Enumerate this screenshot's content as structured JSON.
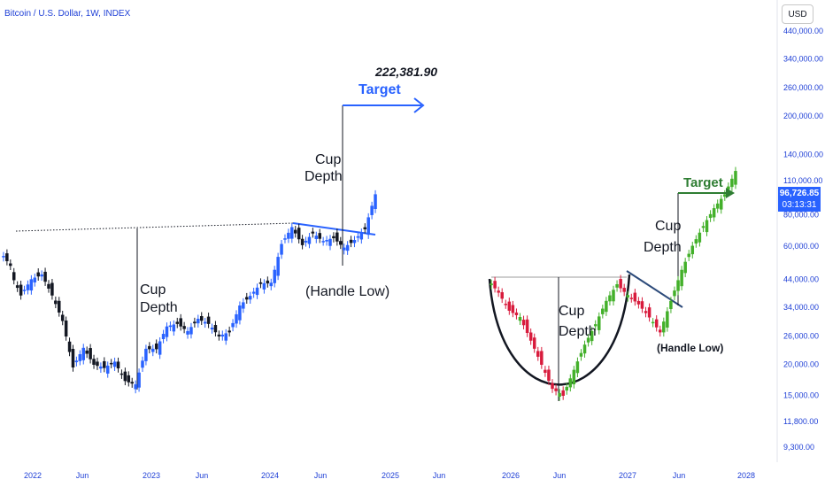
{
  "header": {
    "title": "Bitcoin / U.S. Dollar, 1W, INDEX",
    "currency_button": "USD"
  },
  "current_price": {
    "value": "96,726.85",
    "countdown": "03:13:31"
  },
  "colors": {
    "axis_text": "#1e3fd6",
    "candle_up_left": "#2962ff",
    "candle_down_left": "#131722",
    "candle_up_right": "#43b02a",
    "candle_down_right": "#d81b3c",
    "trendline": "#2962ff",
    "target_right": "#2e7d32",
    "handle_line_right": "#2c4a7a",
    "badge": "#2962ff"
  },
  "chart_data": {
    "type": "candlestick",
    "y_scale": "log",
    "y_axis_ticks": [
      "440,000.00",
      "340,000.00",
      "260,000.00",
      "200,000.00",
      "140,000.00",
      "110,000.00",
      "80,000.00",
      "60,000.00",
      "44,000.00",
      "34,000.00",
      "26,000.00",
      "20,000.00",
      "15,000.00",
      "11,800.00",
      "9,300.00"
    ],
    "x_axis_ticks": [
      "2022",
      "Jun",
      "2023",
      "Jun",
      "2024",
      "Jun",
      "2025",
      "Jun",
      "2026",
      "Jun",
      "2027",
      "Jun",
      "2028"
    ],
    "annotations_left": {
      "target_value": "222,381.90",
      "target_label": "Target",
      "cup_depth_label_1": "Cup",
      "cup_depth_label_2": "Depth",
      "handle_label": "(Handle Low)"
    },
    "annotations_right": {
      "target_label": "Target",
      "cup_depth_label_1": "Cup",
      "cup_depth_label_2": "Depth",
      "handle_label": "(Handle Low)"
    },
    "series_left": [
      [
        "2021-12",
        57000,
        50000
      ],
      [
        "2022-01",
        47000,
        38000
      ],
      [
        "2022-02",
        38000,
        44000
      ],
      [
        "2022-03",
        44000,
        46000
      ],
      [
        "2022-04",
        46000,
        38000
      ],
      [
        "2022-05",
        38000,
        30000
      ],
      [
        "2022-06",
        30000,
        19500
      ],
      [
        "2022-07",
        19500,
        23300
      ],
      [
        "2022-08",
        23300,
        20000
      ],
      [
        "2022-09",
        20000,
        19400
      ],
      [
        "2022-10",
        19400,
        20500
      ],
      [
        "2022-11",
        20500,
        17200
      ],
      [
        "2022-12",
        17200,
        16600
      ],
      [
        "2023-01",
        16600,
        23100
      ],
      [
        "2023-02",
        23100,
        23100
      ],
      [
        "2023-03",
        23100,
        28400
      ],
      [
        "2023-04",
        28400,
        29200
      ],
      [
        "2023-05",
        29200,
        27200
      ],
      [
        "2023-06",
        27200,
        30500
      ],
      [
        "2023-07",
        30500,
        29200
      ],
      [
        "2023-08",
        29200,
        26000
      ],
      [
        "2023-09",
        26000,
        27000
      ],
      [
        "2023-10",
        27000,
        34500
      ],
      [
        "2023-11",
        34500,
        37700
      ],
      [
        "2023-12",
        37700,
        42300
      ],
      [
        "2024-01",
        42300,
        42600
      ],
      [
        "2024-02",
        42600,
        61000
      ],
      [
        "2024-03",
        61000,
        71300
      ],
      [
        "2024-04",
        71300,
        60600
      ],
      [
        "2024-05",
        60600,
        67500
      ],
      [
        "2024-06",
        67500,
        62700
      ],
      [
        "2024-07",
        62700,
        64600
      ],
      [
        "2024-08",
        64600,
        59000
      ],
      [
        "2024-09",
        59000,
        63300
      ],
      [
        "2024-10",
        63300,
        70200
      ],
      [
        "2024-11",
        70200,
        96700
      ]
    ],
    "series_right": [
      [
        "2025-12",
        44000,
        39000
      ],
      [
        "2026-01",
        39000,
        33000
      ],
      [
        "2026-02",
        33000,
        31000
      ],
      [
        "2026-03",
        31000,
        25000
      ],
      [
        "2026-04",
        25000,
        20000
      ],
      [
        "2026-05",
        20000,
        16000
      ],
      [
        "2026-06",
        16000,
        15000
      ],
      [
        "2026-07",
        15000,
        19000
      ],
      [
        "2026-08",
        19000,
        24000
      ],
      [
        "2026-09",
        24000,
        29000
      ],
      [
        "2026-10",
        29000,
        36000
      ],
      [
        "2026-11",
        36000,
        42000
      ],
      [
        "2027-01",
        42000,
        38000
      ],
      [
        "2027-02",
        38000,
        35000
      ],
      [
        "2027-03",
        35000,
        31000
      ],
      [
        "2027-04",
        31000,
        27000
      ],
      [
        "2027-05",
        27000,
        36000
      ],
      [
        "2027-06",
        36000,
        48000
      ],
      [
        "2027-07",
        48000,
        60000
      ],
      [
        "2027-08",
        60000,
        72000
      ],
      [
        "2027-09",
        72000,
        85000
      ],
      [
        "2027-10",
        85000,
        96700
      ],
      [
        "2027-11",
        96700,
        120000
      ]
    ]
  }
}
